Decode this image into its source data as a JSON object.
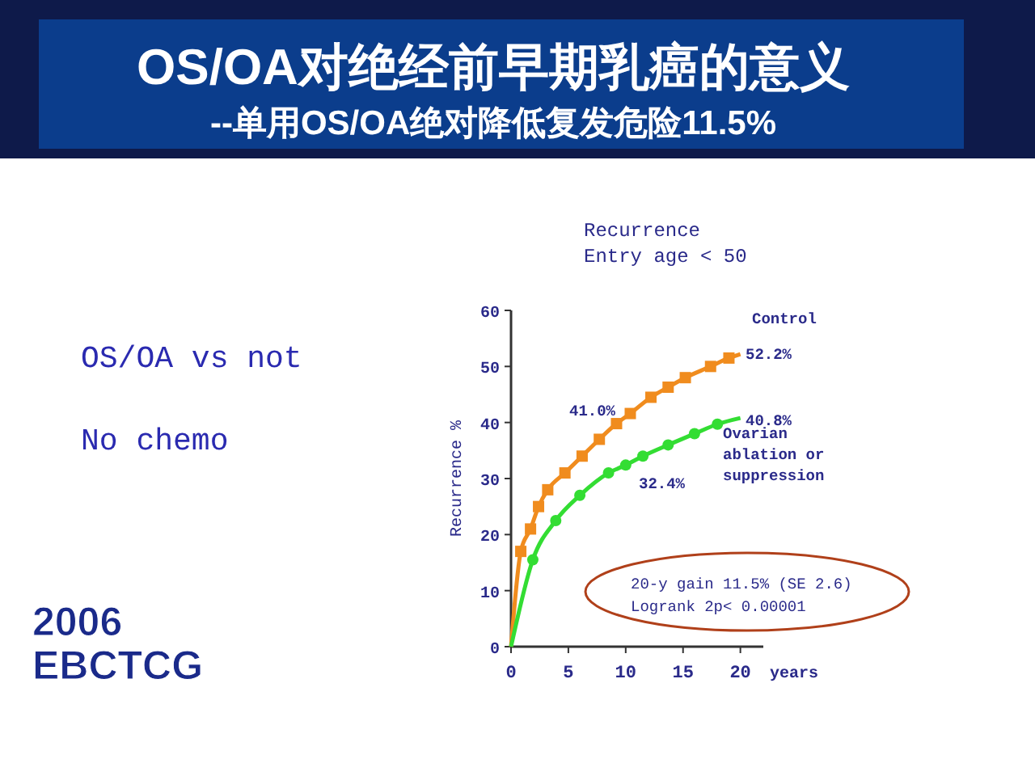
{
  "chart_data": {
    "type": "line",
    "title": "OS/OA对绝经前早期乳癌的意义",
    "subtitle": "--单用OS/OA绝对降低复发危险11.5%",
    "xlabel": "years",
    "ylabel": "Recurrence %",
    "xlim": [
      0,
      22
    ],
    "ylim": [
      0,
      60
    ],
    "xticks": [
      0,
      5,
      10,
      15,
      20
    ],
    "yticks": [
      0,
      10,
      20,
      30,
      40,
      50,
      60
    ],
    "grid": false,
    "legend": false,
    "series": [
      {
        "name": "Control",
        "color": "#f08c1e",
        "marker": "none",
        "x": [
          0,
          0.85,
          1.7,
          2.4,
          3.2,
          4.7,
          6.2,
          7.7,
          9.2,
          10.4,
          12.2,
          13.7,
          15.2,
          17.4,
          19,
          20
        ],
        "values": [
          0,
          17,
          21,
          25,
          28,
          31,
          34,
          37,
          39.8,
          41.6,
          44.5,
          46.3,
          48,
          50,
          51.5,
          52.2
        ]
      },
      {
        "color": "#f08c1e",
        "type": "scatter",
        "marker": "square",
        "x": [
          0.85,
          1.7,
          2.4,
          3.2,
          4.7,
          6.2,
          7.7,
          9.2,
          10.4,
          12.2,
          13.7,
          15.2,
          17.4,
          19
        ],
        "values": [
          17,
          21,
          25,
          28,
          31,
          34,
          37,
          39.8,
          41.6,
          44.5,
          46.3,
          48,
          50,
          51.5
        ]
      },
      {
        "name": "Ovarian ablation or suppression",
        "color": "#33dd33",
        "marker": "none",
        "x": [
          0,
          1.9,
          3.9,
          6,
          8.5,
          10,
          11.5,
          13.7,
          16,
          18,
          20
        ],
        "values": [
          0,
          15.5,
          22.5,
          27,
          31,
          32.4,
          34,
          36,
          38,
          39.7,
          40.8
        ]
      },
      {
        "color": "#33dd33",
        "type": "scatter",
        "marker": "circle",
        "x": [
          1.9,
          3.9,
          6,
          8.5,
          10,
          11.5,
          13.7,
          16,
          18
        ],
        "values": [
          15.5,
          22.5,
          27,
          31,
          32.4,
          34,
          36,
          38,
          39.7
        ]
      }
    ],
    "annotations": [
      "Recurrence",
      "Entry age < 50",
      "OS/OA vs not",
      "No chemo",
      "2006 EBCTCG",
      "20-y gain 11.5% (SE 2.6)",
      "Logrank 2p< 0.00001",
      "52.2%",
      "41.0%",
      "40.8%",
      "32.4%"
    ]
  }
}
